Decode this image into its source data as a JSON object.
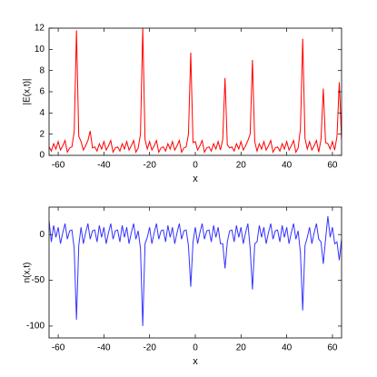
{
  "chart_data": [
    {
      "type": "line",
      "xlabel": "x",
      "ylabel": "|E(x,t)|",
      "x": [
        -64,
        -63,
        -62,
        -61,
        -60,
        -59,
        -58,
        -57,
        -56,
        -55,
        -54,
        -53,
        -52,
        -51,
        -50,
        -49,
        -48,
        -47,
        -46,
        -45,
        -44,
        -43,
        -42,
        -41,
        -40,
        -39,
        -38,
        -37,
        -36,
        -35,
        -34,
        -33,
        -32,
        -31,
        -30,
        -29,
        -28,
        -27,
        -26,
        -25,
        -24,
        -23,
        -22,
        -21,
        -20,
        -19,
        -18,
        -17,
        -16,
        -15,
        -14,
        -13,
        -12,
        -11,
        -10,
        -9,
        -8,
        -7,
        -6,
        -5,
        -4,
        -3,
        -2,
        -1,
        0,
        1,
        2,
        3,
        4,
        5,
        6,
        7,
        8,
        9,
        10,
        11,
        12,
        13,
        14,
        15,
        16,
        17,
        18,
        19,
        20,
        21,
        22,
        23,
        24,
        25,
        26,
        27,
        28,
        29,
        30,
        31,
        32,
        33,
        34,
        35,
        36,
        37,
        38,
        39,
        40,
        41,
        42,
        43,
        44,
        45,
        46,
        47,
        48,
        49,
        50,
        51,
        52,
        53,
        54,
        55,
        56,
        57,
        58,
        59,
        60,
        61,
        62,
        63,
        64
      ],
      "series": [
        {
          "color": "#ff0000",
          "values": [
            0.8,
            0.4,
            1.1,
            0.6,
            1.3,
            0.5,
            0.9,
            1.4,
            0.3,
            0.7,
            0.8,
            2.2,
            11.8,
            1.8,
            1.3,
            0.5,
            0.9,
            1.4,
            2.3,
            0.7,
            0.8,
            0.4,
            1.1,
            0.6,
            1.3,
            0.5,
            0.9,
            1.4,
            0.3,
            0.7,
            0.8,
            0.4,
            1.1,
            0.6,
            1.3,
            0.5,
            0.9,
            1.4,
            0.3,
            0.7,
            2.0,
            12,
            1.5,
            0.6,
            1.3,
            0.5,
            0.9,
            1.4,
            0.3,
            0.7,
            0.8,
            0.4,
            1.1,
            0.6,
            1.3,
            0.5,
            0.9,
            1.4,
            0.3,
            0.7,
            0.8,
            2.0,
            9.7,
            1.2,
            1.3,
            0.5,
            0.9,
            1.4,
            0.3,
            0.7,
            0.8,
            0.4,
            1.1,
            0.6,
            1.3,
            0.5,
            1.5,
            7.3,
            1.0,
            0.7,
            0.8,
            0.4,
            1.1,
            0.6,
            1.3,
            0.5,
            0.9,
            1.4,
            2.0,
            9.0,
            1.3,
            0.4,
            1.1,
            0.6,
            1.3,
            0.5,
            0.9,
            1.4,
            0.3,
            0.7,
            0.8,
            0.4,
            1.1,
            0.6,
            1.3,
            0.5,
            0.9,
            1.4,
            0.3,
            0.7,
            2.5,
            11,
            1.6,
            0.6,
            1.3,
            0.5,
            0.9,
            1.4,
            0.3,
            1.5,
            6.3,
            1.2,
            1.1,
            0.6,
            1.3,
            0.5,
            1.8,
            6.9,
            1.5
          ]
        }
      ],
      "xlim": [
        -64,
        64
      ],
      "xticks": [
        -60,
        -40,
        -20,
        0,
        20,
        40,
        60
      ],
      "ylim": [
        0,
        12
      ],
      "yticks": [
        0,
        2,
        4,
        6,
        8,
        10,
        12
      ]
    },
    {
      "type": "line",
      "xlabel": "x",
      "ylabel": "n(x,t)",
      "x": [
        -64,
        -63,
        -62,
        -61,
        -60,
        -59,
        -58,
        -57,
        -56,
        -55,
        -54,
        -53,
        -52,
        -51,
        -50,
        -49,
        -48,
        -47,
        -46,
        -45,
        -44,
        -43,
        -42,
        -41,
        -40,
        -39,
        -38,
        -37,
        -36,
        -35,
        -34,
        -33,
        -32,
        -31,
        -30,
        -29,
        -28,
        -27,
        -26,
        -25,
        -24,
        -23,
        -22,
        -21,
        -20,
        -19,
        -18,
        -17,
        -16,
        -15,
        -14,
        -13,
        -12,
        -11,
        -10,
        -9,
        -8,
        -7,
        -6,
        -5,
        -4,
        -3,
        -2,
        -1,
        0,
        1,
        2,
        3,
        4,
        5,
        6,
        7,
        8,
        9,
        10,
        11,
        12,
        13,
        14,
        15,
        16,
        17,
        18,
        19,
        20,
        21,
        22,
        23,
        24,
        25,
        26,
        27,
        28,
        29,
        30,
        31,
        32,
        33,
        34,
        35,
        36,
        37,
        38,
        39,
        40,
        41,
        42,
        43,
        44,
        45,
        46,
        47,
        48,
        49,
        50,
        51,
        52,
        53,
        54,
        55,
        56,
        57,
        58,
        59,
        60,
        61,
        62,
        63,
        64
      ],
      "series": [
        {
          "color": "#3333ff",
          "values": [
            15,
            -8,
            10,
            -3,
            8,
            -10,
            2,
            12,
            -5,
            4,
            5,
            -15,
            -93,
            -12,
            8,
            -10,
            2,
            12,
            -5,
            4,
            5,
            -8,
            10,
            -3,
            8,
            -10,
            2,
            12,
            -5,
            4,
            5,
            -8,
            10,
            -3,
            8,
            -10,
            2,
            12,
            -5,
            4,
            -15,
            -100,
            -10,
            -3,
            8,
            -10,
            2,
            12,
            -5,
            4,
            5,
            -8,
            10,
            -3,
            8,
            -10,
            2,
            12,
            -5,
            4,
            5,
            -12,
            -57,
            -8,
            8,
            -10,
            2,
            12,
            -5,
            4,
            5,
            -8,
            10,
            -3,
            8,
            -10,
            -10,
            -37,
            -8,
            4,
            5,
            -8,
            10,
            -3,
            8,
            -10,
            2,
            12,
            -15,
            -60,
            -10,
            -8,
            10,
            -3,
            8,
            -10,
            2,
            12,
            -5,
            4,
            5,
            -8,
            10,
            -3,
            8,
            -10,
            2,
            12,
            -5,
            4,
            -20,
            -83,
            -12,
            -3,
            8,
            -10,
            2,
            12,
            -5,
            -8,
            -32,
            -5,
            20,
            -3,
            8,
            -10,
            -8,
            -28,
            -5
          ]
        }
      ],
      "xlim": [
        -64,
        64
      ],
      "xticks": [
        -60,
        -40,
        -20,
        0,
        20,
        40,
        60
      ],
      "ylim": [
        -113,
        30
      ],
      "yticks": [
        -100,
        -50,
        0
      ]
    }
  ]
}
